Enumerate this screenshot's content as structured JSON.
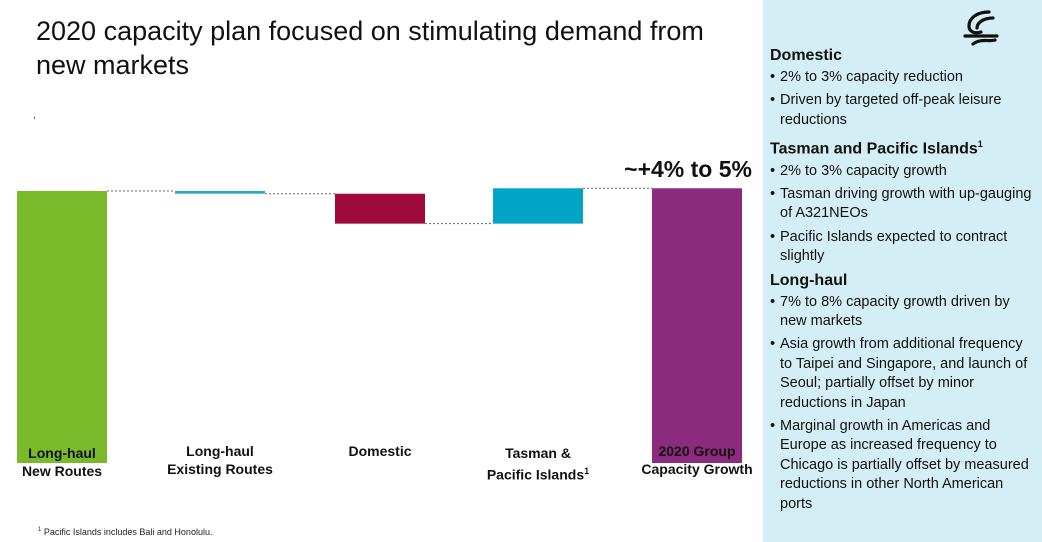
{
  "title": "2020 capacity plan focused on stimulating demand from new markets",
  "stray_mark": ",",
  "total_label": "~+4% to 5%",
  "footnote": {
    "marker": "1",
    "text": "Pacific Islands includes Bali and Honolulu."
  },
  "colors": {
    "long_haul_new": "#7ab929",
    "long_haul_existing": "#2aa9c4",
    "domestic": "#9d0a3b",
    "tasman_pacific": "#00a5c6",
    "group_total": "#8c2a7e",
    "panel_bg": "#d3eef5"
  },
  "chart_data": {
    "type": "bar",
    "subtype": "waterfall",
    "categories": [
      {
        "line1": "Long-haul",
        "line2": "New Routes",
        "sup": ""
      },
      {
        "line1": "Long-haul",
        "line2": "Existing Routes",
        "sup": ""
      },
      {
        "line1": "Domestic",
        "line2": "",
        "sup": ""
      },
      {
        "line1": "Tasman &",
        "line2": "Pacific Islands",
        "sup": "1"
      },
      {
        "line1": "2020 Group",
        "line2": "Capacity Growth",
        "sup": ""
      }
    ],
    "steps": [
      {
        "kind": "base",
        "value": 100,
        "color": "#7ab929"
      },
      {
        "kind": "delta",
        "value": -1,
        "color": "#2aa9c4"
      },
      {
        "kind": "delta",
        "value": -11,
        "color": "#9d0a3b"
      },
      {
        "kind": "delta",
        "value": 13,
        "color": "#00a5c6"
      },
      {
        "kind": "total",
        "value": 101,
        "color": "#8c2a7e"
      }
    ],
    "ylim": [
      0,
      110
    ],
    "grid": false,
    "legend": "none",
    "annotation": "~+4% to 5%"
  },
  "panel": {
    "logo_icon": "koru-logo-icon",
    "sections": [
      {
        "heading": "Domestic",
        "sup": "",
        "bullets": [
          "2% to 3% capacity reduction",
          "Driven by targeted off-peak leisure reductions"
        ]
      },
      {
        "heading": "Tasman and Pacific Islands",
        "sup": "1",
        "bullets": [
          "2% to 3% capacity growth",
          "Tasman driving growth with up-gauging of A321NEOs",
          "Pacific Islands expected to contract slightly"
        ]
      },
      {
        "heading": "Long-haul",
        "sup": "",
        "bullets": [
          "7% to 8% capacity growth driven by new markets",
          "Asia growth from additional frequency to Taipei and Singapore, and launch of Seoul; partially offset by minor reductions in Japan",
          "Marginal growth in Americas and Europe as increased frequency to Chicago is partially offset by measured reductions in other North American ports"
        ]
      }
    ]
  }
}
